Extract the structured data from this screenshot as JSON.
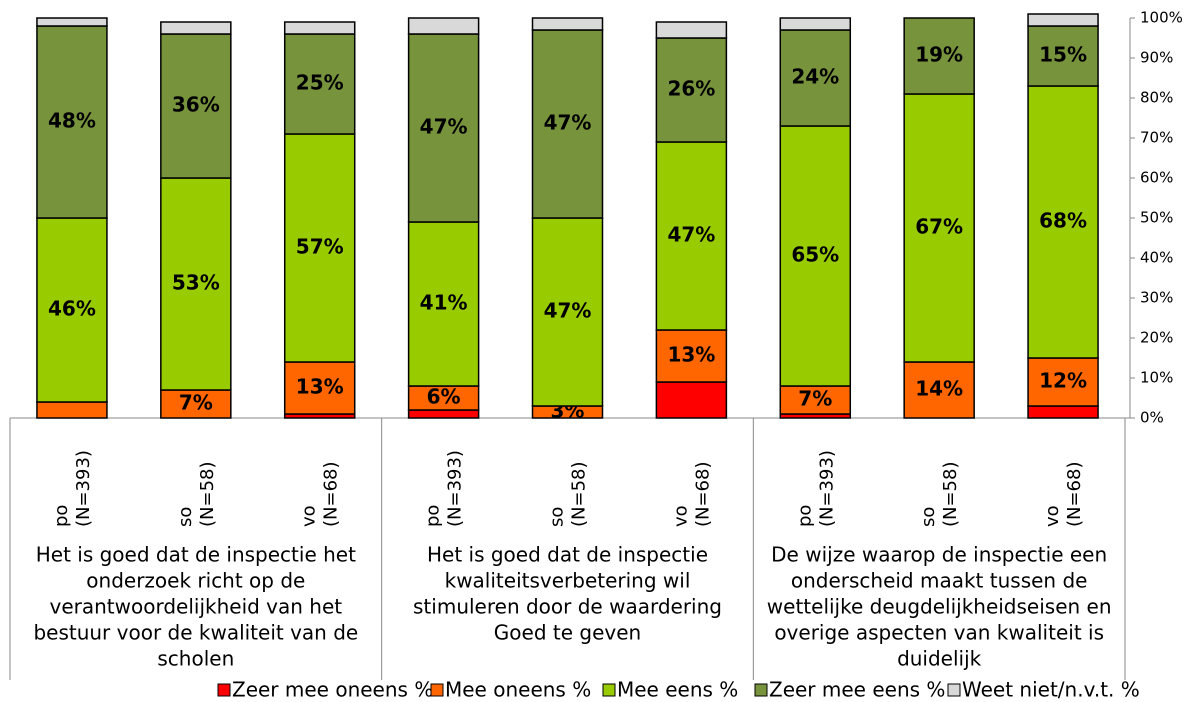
{
  "chart_data": {
    "type": "stacked_bar",
    "categories": [
      [
        "po",
        "(N=393)"
      ],
      [
        "so",
        "(N=58)"
      ],
      [
        "vo",
        "(N=68)"
      ],
      [
        "po",
        "(N=393)"
      ],
      [
        "so",
        "(N=58)"
      ],
      [
        "vo",
        "(N=68)"
      ],
      [
        "po",
        "(N=393)"
      ],
      [
        "so",
        "(N=58)"
      ],
      [
        "vo",
        "(N=68)"
      ]
    ],
    "groups": [
      {
        "lines": [
          "Het is goed dat de inspectie het",
          "onderzoek richt op de",
          "verantwoordelijkheid van het",
          "bestuur voor de kwaliteit van de",
          "scholen"
        ],
        "size": 3
      },
      {
        "lines": [
          "Het is goed dat de inspectie",
          "kwaliteitsverbetering wil",
          "stimuleren door de waardering",
          "Goed te geven"
        ],
        "size": 3
      },
      {
        "lines": [
          "De wijze waarop de inspectie een",
          "onderscheid maakt tussen de",
          "wettelijke deugdelijkheidseisen en",
          "overige aspecten van kwaliteit is",
          "duidelijk"
        ],
        "size": 3
      }
    ],
    "series": [
      {
        "name": "Zeer mee oneens %",
        "color": "#ff0000",
        "values": [
          0,
          0,
          1,
          2,
          0,
          9,
          1,
          0,
          3
        ]
      },
      {
        "name": "Mee oneens %",
        "color": "#ff6600",
        "values": [
          4,
          7,
          13,
          6,
          3,
          13,
          7,
          14,
          12
        ],
        "value_labels": [
          null,
          "7%",
          "13%",
          "6%",
          "3%",
          "13%",
          "7%",
          "14%",
          "12%"
        ]
      },
      {
        "name": "Mee eens %",
        "color": "#99cc00",
        "values": [
          46,
          53,
          57,
          41,
          47,
          47,
          65,
          67,
          68
        ],
        "value_labels": [
          "46%",
          "53%",
          "57%",
          "41%",
          "47%",
          "47%",
          "65%",
          "67%",
          "68%"
        ]
      },
      {
        "name": "Zeer mee eens %",
        "color": "#77933c",
        "values": [
          48,
          36,
          25,
          47,
          47,
          26,
          24,
          19,
          15
        ],
        "value_labels": [
          "48%",
          "36%",
          "25%",
          "47%",
          "47%",
          "26%",
          "24%",
          "19%",
          "15%"
        ]
      },
      {
        "name": "Weet niet/n.v.t. %",
        "color": "#d9d9d9",
        "values": [
          2,
          3,
          3,
          4,
          3,
          4,
          3,
          0,
          3
        ]
      }
    ],
    "ylim": [
      0,
      100
    ],
    "yticks": [
      {
        "value": 0,
        "label": "0%"
      },
      {
        "value": 10,
        "label": "10%"
      },
      {
        "value": 20,
        "label": "20%"
      },
      {
        "value": 30,
        "label": "30%"
      },
      {
        "value": 40,
        "label": "40%"
      },
      {
        "value": 50,
        "label": "50%"
      },
      {
        "value": 60,
        "label": "60%"
      },
      {
        "value": 70,
        "label": "70%"
      },
      {
        "value": 80,
        "label": "80%"
      },
      {
        "value": 90,
        "label": "90%"
      },
      {
        "value": 100,
        "label": "100%"
      }
    ],
    "legend": "bottom"
  }
}
